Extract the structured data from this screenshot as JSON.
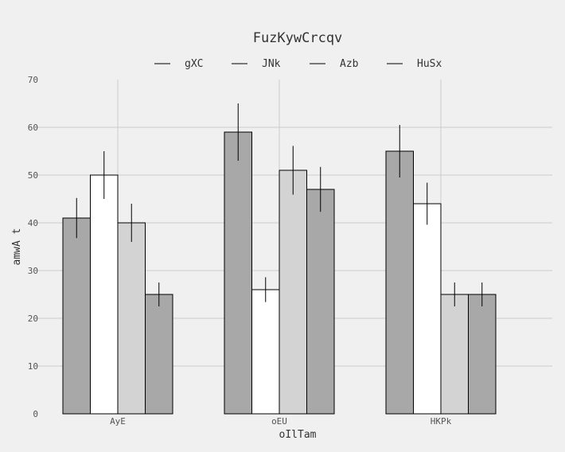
{
  "chart_data": {
    "type": "bar",
    "title": "FuzKywCrcqv",
    "xlabel": "oIlTam",
    "ylabel": "amwA  t",
    "categories": [
      "AyE",
      "oEU",
      "HKPk"
    ],
    "ylim": [
      0,
      70
    ],
    "yticks": [
      0,
      10,
      20,
      30,
      40,
      50,
      60,
      70
    ],
    "grid": true,
    "legend_position": "top",
    "series": [
      {
        "name": "gXC",
        "color": "#a8a8a8",
        "values": [
          41,
          59,
          55
        ],
        "errors": [
          4.2,
          6.0,
          5.5
        ]
      },
      {
        "name": "JNk",
        "color": "#ffffff",
        "values": [
          50,
          26,
          44
        ],
        "errors": [
          5.0,
          2.6,
          4.4
        ]
      },
      {
        "name": "Azb",
        "color": "#d3d3d3",
        "values": [
          40,
          51,
          25
        ],
        "errors": [
          4.0,
          5.1,
          2.5
        ]
      },
      {
        "name": "HuSx",
        "color": "#a8a8a8",
        "values": [
          25,
          47,
          25
        ],
        "errors": [
          2.5,
          4.7,
          2.5
        ]
      }
    ]
  }
}
